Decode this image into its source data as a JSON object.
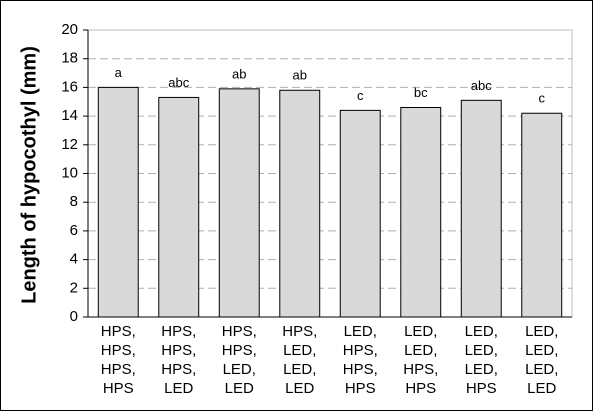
{
  "chart_data": {
    "type": "bar",
    "y_label": "Length of hypocothyl (mm)",
    "categories": [
      [
        "HPS,",
        "HPS,",
        "HPS,",
        "HPS"
      ],
      [
        "HPS,",
        "HPS,",
        "HPS,",
        "LED"
      ],
      [
        "HPS,",
        "HPS,",
        "LED,",
        "LED"
      ],
      [
        "HPS,",
        "LED,",
        "LED,",
        "LED"
      ],
      [
        "LED,",
        "HPS,",
        "HPS,",
        "HPS"
      ],
      [
        "LED,",
        "LED,",
        "HPS,",
        "HPS"
      ],
      [
        "LED,",
        "LED,",
        "LED,",
        "HPS"
      ],
      [
        "LED,",
        "LED,",
        "LED,",
        "LED"
      ]
    ],
    "values": [
      16.0,
      15.3,
      15.9,
      15.8,
      14.4,
      14.6,
      15.1,
      14.2
    ],
    "significance_letters": [
      "a",
      "abc",
      "ab",
      "ab",
      "c",
      "bc",
      "abc",
      "c"
    ],
    "color": "#d9d9d9",
    "ylim": [
      0,
      20
    ],
    "yticks": [
      0,
      2,
      4,
      6,
      8,
      10,
      12,
      14,
      16,
      18,
      20
    ],
    "grid": true
  }
}
